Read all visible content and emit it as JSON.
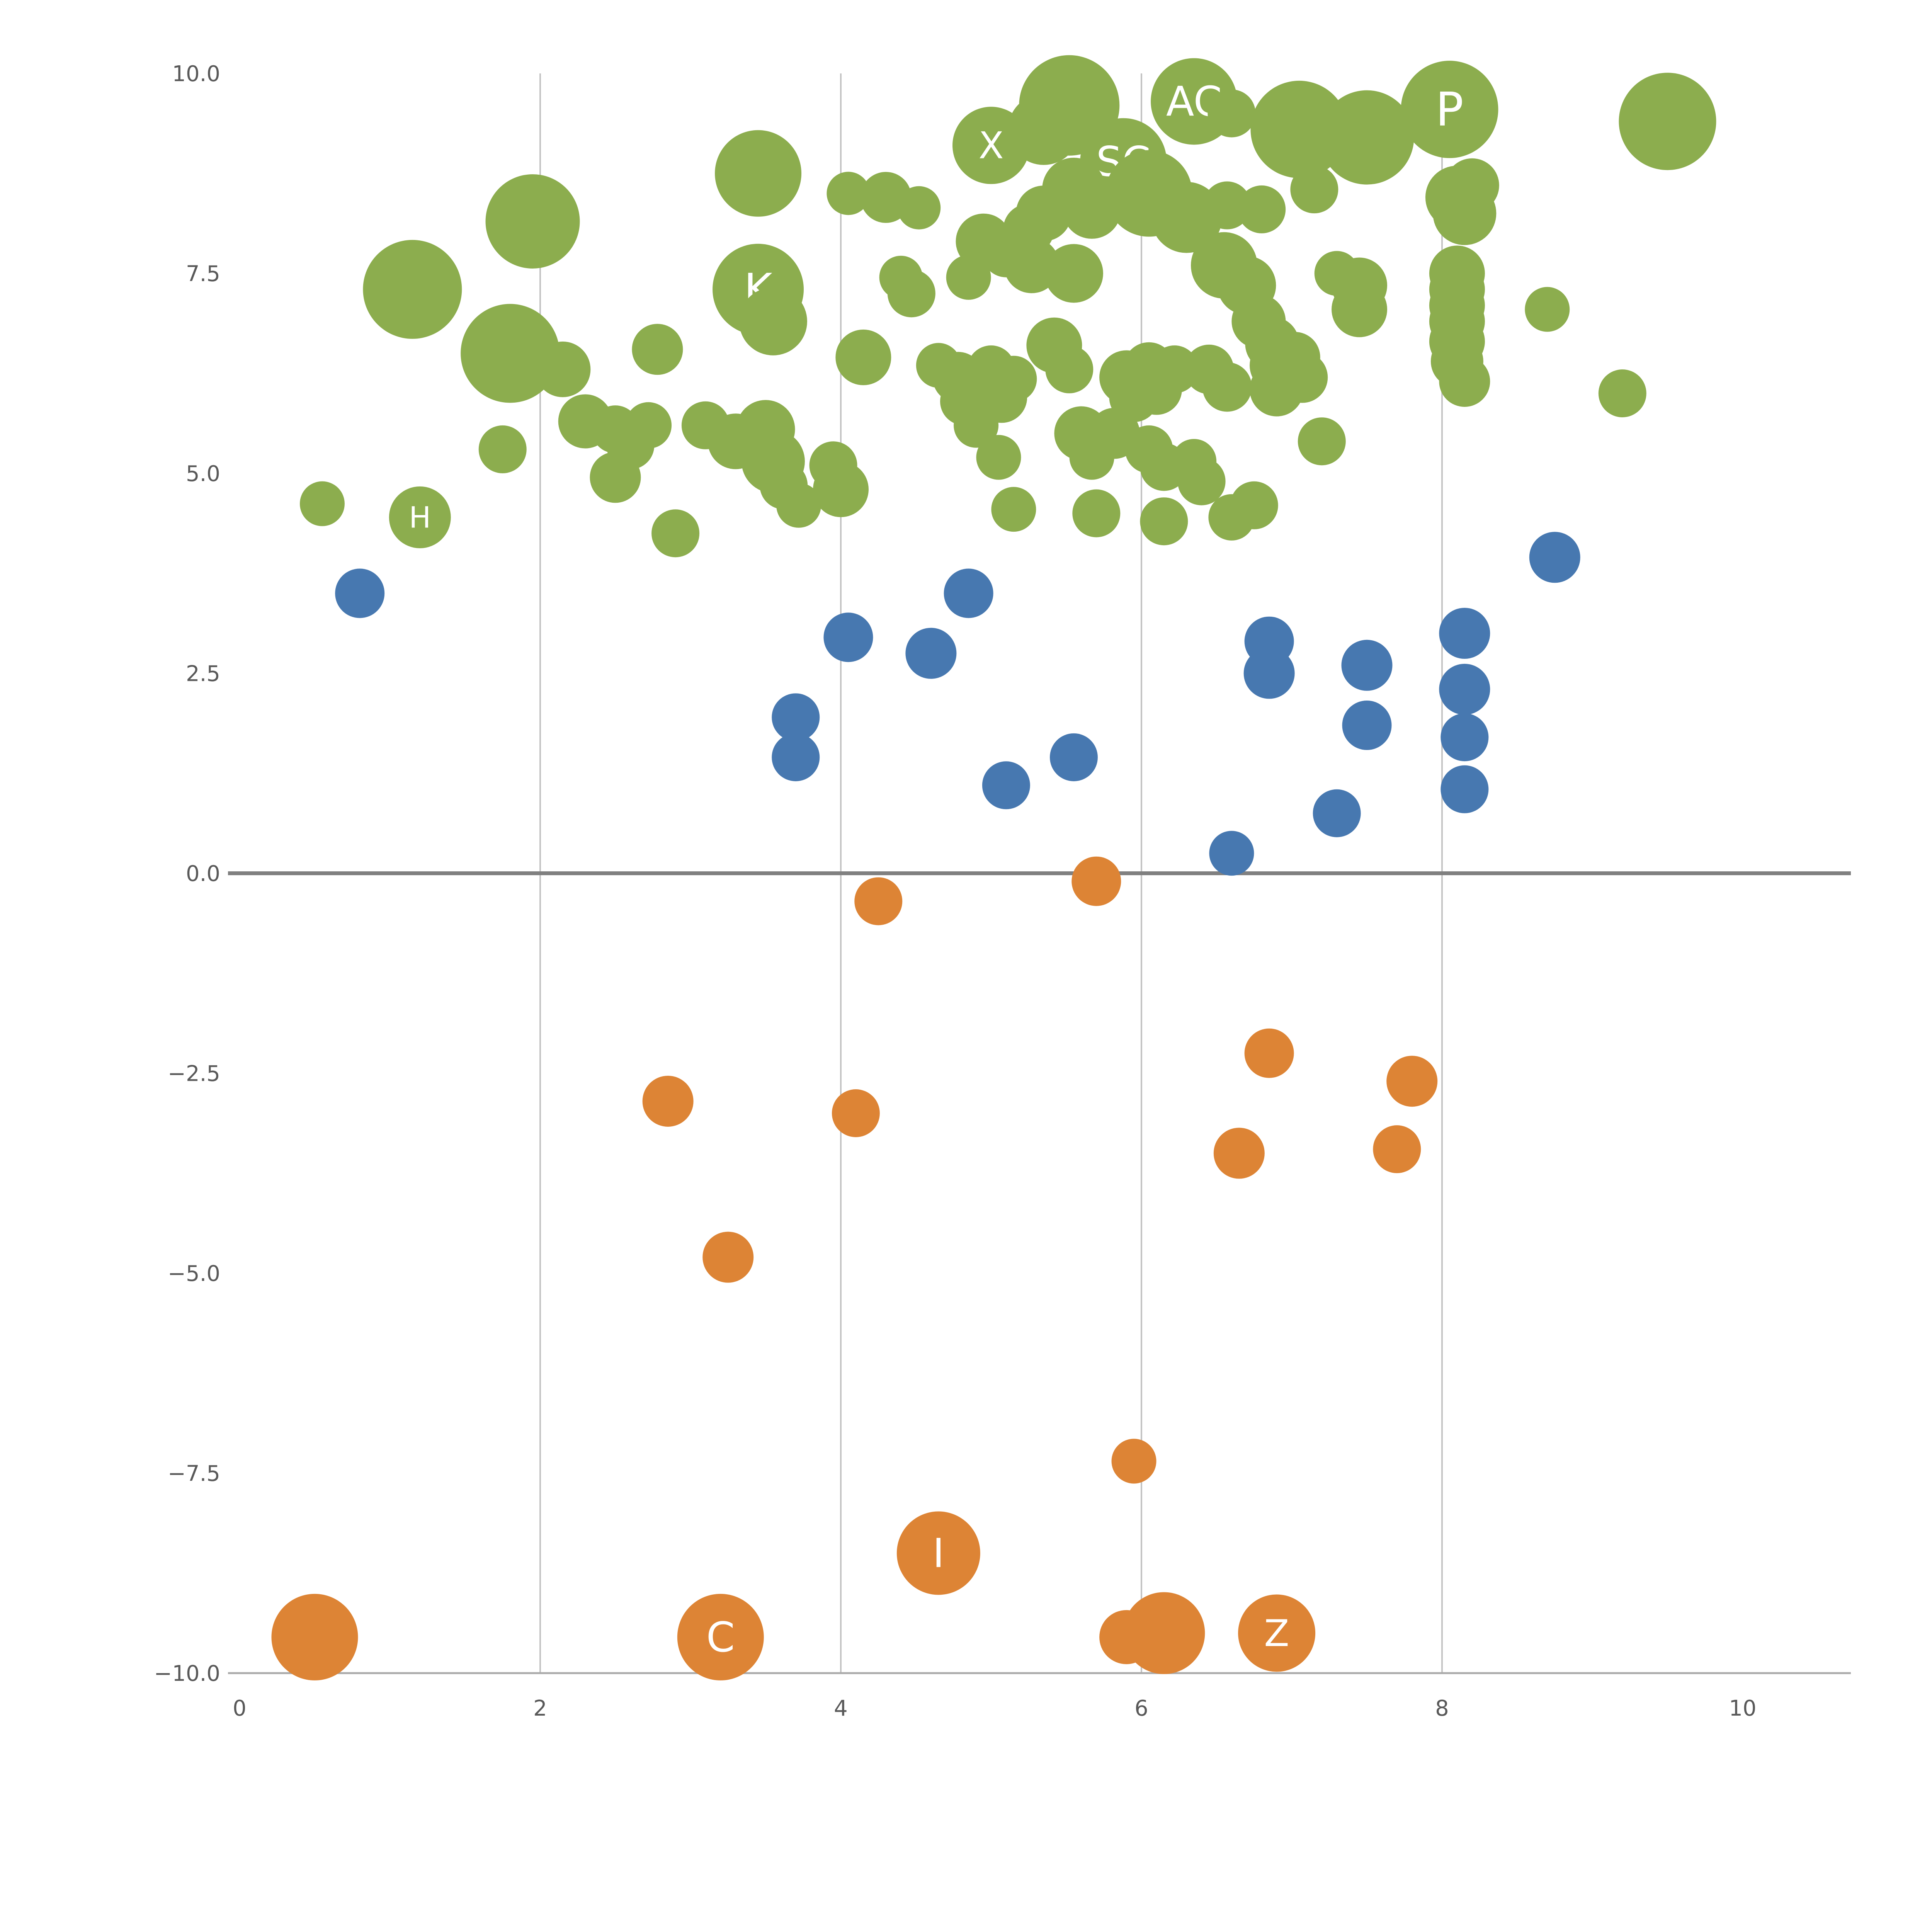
{
  "chart_data": {
    "type": "scatter",
    "title": "",
    "xlabel": "",
    "ylabel": "",
    "xlim": [
      0,
      10
    ],
    "ylim": [
      -10,
      10
    ],
    "grid_on": true,
    "legend": "none",
    "x_gridlines": [
      2,
      4,
      6,
      8
    ],
    "zero_line_y": 0,
    "x_ticks": [
      {
        "v": 0,
        "label": "0"
      },
      {
        "v": 2,
        "label": "2"
      },
      {
        "v": 4,
        "label": "4"
      },
      {
        "v": 6,
        "label": "6"
      },
      {
        "v": 8,
        "label": "8"
      },
      {
        "v": 10,
        "label": "10"
      }
    ],
    "y_ticks": [
      {
        "v": 10,
        "label": "10.0"
      },
      {
        "v": 7.5,
        "label": "7.5"
      },
      {
        "v": 5,
        "label": "5.0"
      },
      {
        "v": 2.5,
        "label": "2.5"
      },
      {
        "v": 0,
        "label": "0.0"
      },
      {
        "v": -2.5,
        "label": "−2.5"
      },
      {
        "v": -5,
        "label": "−5.0"
      },
      {
        "v": -7.5,
        "label": "−7.5"
      },
      {
        "v": -10,
        "label": "−10.0"
      }
    ],
    "colors": {
      "grid": "#c3c3c3",
      "zero_line": "#808080",
      "axis_line": "#aaaaaa",
      "tick_label": "#595959",
      "bubble_label_text": "#ffffff"
    },
    "series": [
      {
        "name": "green",
        "color": "#8cad4e",
        "points": [
          [
            0.55,
            4.62,
            58
          ],
          [
            1.2,
            4.45,
            80,
            "H"
          ],
          [
            1.15,
            7.3,
            128
          ],
          [
            1.95,
            8.15,
            122
          ],
          [
            1.8,
            6.5,
            128
          ],
          [
            1.75,
            5.3,
            62
          ],
          [
            2.15,
            6.3,
            72
          ],
          [
            2.3,
            5.65,
            70
          ],
          [
            2.5,
            5.55,
            62
          ],
          [
            2.6,
            5.35,
            62
          ],
          [
            2.72,
            5.6,
            60
          ],
          [
            2.5,
            4.95,
            66
          ],
          [
            2.78,
            6.55,
            66
          ],
          [
            2.9,
            4.25,
            62
          ],
          [
            3.1,
            5.6,
            62
          ],
          [
            3.3,
            5.4,
            72
          ],
          [
            3.45,
            8.75,
            112
          ],
          [
            3.45,
            7.3,
            118,
            "K"
          ],
          [
            3.55,
            6.9,
            88
          ],
          [
            3.5,
            5.55,
            76
          ],
          [
            3.55,
            5.15,
            82
          ],
          [
            3.62,
            4.85,
            62
          ],
          [
            3.72,
            4.6,
            58
          ],
          [
            3.95,
            5.1,
            62
          ],
          [
            4.0,
            4.8,
            72
          ],
          [
            4.05,
            8.5,
            56
          ],
          [
            4.3,
            8.45,
            66
          ],
          [
            4.52,
            8.32,
            56
          ],
          [
            4.15,
            6.45,
            72
          ],
          [
            4.4,
            7.45,
            56
          ],
          [
            4.47,
            7.25,
            62
          ],
          [
            4.65,
            6.35,
            58
          ],
          [
            4.78,
            6.2,
            66
          ],
          [
            4.9,
            6.08,
            70
          ],
          [
            5.0,
            6.3,
            62
          ],
          [
            4.82,
            5.9,
            62
          ],
          [
            5.07,
            5.95,
            66
          ],
          [
            5.15,
            6.18,
            60
          ],
          [
            4.95,
            7.9,
            72
          ],
          [
            5.1,
            7.75,
            62
          ],
          [
            5.27,
            7.6,
            72
          ],
          [
            4.85,
            7.45,
            58
          ],
          [
            5.0,
            9.1,
            100,
            "X"
          ],
          [
            5.35,
            9.3,
            92
          ],
          [
            5.52,
            9.6,
            130
          ],
          [
            5.88,
            8.9,
            112,
            "SC"
          ],
          [
            5.55,
            8.55,
            82
          ],
          [
            5.67,
            8.3,
            76
          ],
          [
            5.35,
            8.25,
            72
          ],
          [
            5.25,
            8.05,
            66
          ],
          [
            5.55,
            7.5,
            76
          ],
          [
            5.42,
            6.6,
            72
          ],
          [
            5.52,
            6.3,
            62
          ],
          [
            5.6,
            5.5,
            70
          ],
          [
            5.67,
            5.2,
            58
          ],
          [
            5.82,
            5.5,
            66
          ],
          [
            5.9,
            6.2,
            70
          ],
          [
            6.05,
            6.32,
            66
          ],
          [
            6.1,
            6.05,
            66
          ],
          [
            6.22,
            6.3,
            62
          ],
          [
            6.05,
            8.5,
            112
          ],
          [
            6.3,
            8.2,
            92
          ],
          [
            6.35,
            9.65,
            112,
            "AC"
          ],
          [
            6.6,
            9.5,
            62
          ],
          [
            6.57,
            8.35,
            62
          ],
          [
            6.8,
            8.3,
            62
          ],
          [
            6.55,
            7.6,
            86
          ],
          [
            6.7,
            7.35,
            76
          ],
          [
            6.78,
            6.9,
            70
          ],
          [
            6.87,
            6.62,
            70
          ],
          [
            6.9,
            6.35,
            70
          ],
          [
            6.9,
            6.05,
            70
          ],
          [
            7.02,
            6.45,
            66
          ],
          [
            7.07,
            6.2,
            66
          ],
          [
            7.05,
            9.3,
            126
          ],
          [
            7.15,
            8.55,
            62
          ],
          [
            7.3,
            7.5,
            58
          ],
          [
            7.45,
            7.35,
            72
          ],
          [
            7.45,
            7.05,
            72
          ],
          [
            7.5,
            9.2,
            122
          ],
          [
            8.05,
            9.55,
            126,
            "P"
          ],
          [
            8.1,
            8.45,
            82
          ],
          [
            8.15,
            8.25,
            82
          ],
          [
            8.2,
            8.6,
            70
          ],
          [
            8.1,
            7.5,
            72
          ],
          [
            8.1,
            7.3,
            72
          ],
          [
            8.1,
            7.1,
            72
          ],
          [
            8.1,
            6.9,
            72
          ],
          [
            8.1,
            6.65,
            72
          ],
          [
            8.1,
            6.4,
            68
          ],
          [
            8.15,
            6.15,
            66
          ],
          [
            8.7,
            7.05,
            58
          ],
          [
            9.5,
            9.4,
            126
          ],
          [
            9.2,
            6.0,
            62
          ],
          [
            6.4,
            4.9,
            62
          ],
          [
            6.75,
            4.6,
            62
          ],
          [
            6.6,
            4.45,
            60
          ],
          [
            6.15,
            4.4,
            62
          ],
          [
            5.7,
            4.5,
            62
          ],
          [
            5.15,
            4.55,
            58
          ],
          [
            6.05,
            5.3,
            62
          ],
          [
            6.15,
            5.08,
            62
          ],
          [
            6.35,
            5.15,
            58
          ],
          [
            7.2,
            5.4,
            62
          ],
          [
            5.05,
            5.2,
            58
          ],
          [
            4.9,
            5.6,
            58
          ],
          [
            5.95,
            5.95,
            64
          ],
          [
            6.45,
            6.3,
            64
          ],
          [
            6.57,
            6.08,
            64
          ]
        ]
      },
      {
        "name": "blue",
        "color": "#4778b0",
        "points": [
          [
            0.8,
            3.5,
            64
          ],
          [
            4.05,
            2.95,
            64
          ],
          [
            4.6,
            2.75,
            66
          ],
          [
            4.85,
            3.5,
            64
          ],
          [
            3.7,
            1.95,
            62
          ],
          [
            3.7,
            1.45,
            62
          ],
          [
            5.1,
            1.1,
            62
          ],
          [
            5.55,
            1.45,
            62
          ],
          [
            6.85,
            2.9,
            64
          ],
          [
            6.85,
            2.5,
            66
          ],
          [
            7.5,
            2.6,
            66
          ],
          [
            7.5,
            1.85,
            64
          ],
          [
            8.15,
            3.0,
            66
          ],
          [
            8.15,
            2.3,
            66
          ],
          [
            8.15,
            1.7,
            62
          ],
          [
            8.15,
            1.05,
            62
          ],
          [
            7.3,
            0.75,
            62
          ],
          [
            6.6,
            0.25,
            58
          ],
          [
            8.75,
            3.95,
            66
          ]
        ]
      },
      {
        "name": "orange",
        "color": "#dd8435",
        "points": [
          [
            5.7,
            -0.1,
            64
          ],
          [
            4.25,
            -0.35,
            62
          ],
          [
            2.85,
            -2.85,
            66
          ],
          [
            4.1,
            -3.0,
            62
          ],
          [
            6.85,
            -2.25,
            64
          ],
          [
            7.8,
            -2.6,
            66
          ],
          [
            6.65,
            -3.5,
            66
          ],
          [
            7.7,
            -3.45,
            62
          ],
          [
            3.25,
            -4.8,
            66
          ],
          [
            5.95,
            -7.35,
            58
          ],
          [
            4.65,
            -8.5,
            108,
            "I"
          ],
          [
            0.5,
            -9.55,
            112
          ],
          [
            3.2,
            -9.55,
            112,
            "C"
          ],
          [
            6.15,
            -9.5,
            106
          ],
          [
            6.9,
            -9.5,
            100,
            "Z"
          ],
          [
            5.9,
            -9.55,
            70
          ]
        ]
      }
    ]
  }
}
